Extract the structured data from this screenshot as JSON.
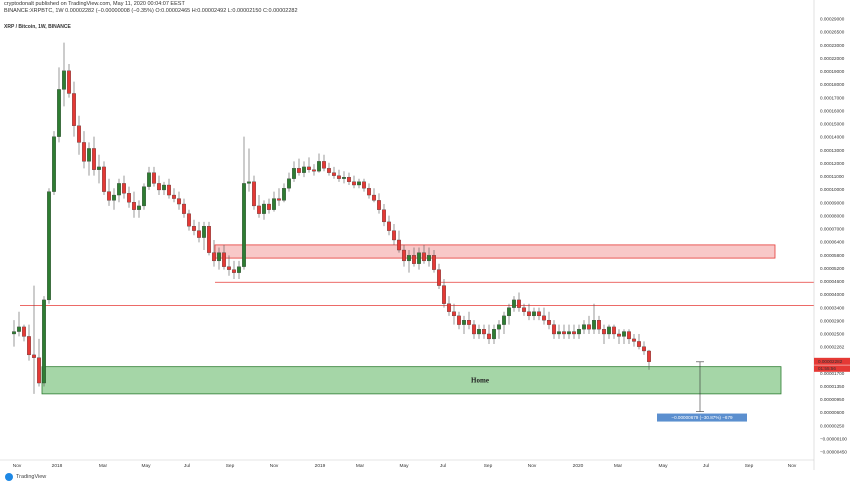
{
  "header": {
    "published": "cryptodonalt published on TradingView.com, May 11, 2020 00:04:07 EEST",
    "symbol_line": "BINANCE:XRPBTC, 1W  0.00002282 (−0.00000008 (−0.35%)  O:0.00002465 H:0.00002492 L:0.00002150 C:0.00002282",
    "title": "XRP / Bitcoin, 1W, BINANCE"
  },
  "colors": {
    "up": "#2e7d32",
    "down": "#e53935",
    "resistance_fill": "#f8c8c8",
    "support_fill": "#a5d6a7",
    "measure": "#5b8fcf"
  },
  "annotations": {
    "home_label": "Home",
    "measure_label": "−0.00000679 (−30.87%) −679",
    "last_price": "0.00002282",
    "last_time": "01:55:56"
  },
  "footer": {
    "logo": "TradingView"
  },
  "chart_data": {
    "type": "candlestick",
    "title": "XRP / Bitcoin, 1W, BINANCE",
    "y_scale": "log",
    "y_ticks": [
      "0.00029000",
      "0.00026500",
      "0.00023000",
      "0.00022000",
      "0.00019000",
      "0.00018000",
      "0.00017000",
      "0.00016000",
      "0.00015000",
      "0.00014000",
      "0.00013000",
      "0.00012000",
      "0.00011000",
      "0.00010000",
      "0.00009000",
      "0.00008000",
      "0.00007000",
      "0.00006400",
      "0.00005800",
      "0.00005200",
      "0.00004600",
      "0.00004000",
      "0.00003400",
      "0.00002900",
      "0.00002500",
      "0.00002282",
      "0.00002100",
      "0.00001700",
      "0.00001350",
      "0.00000950",
      "0.00000600",
      "0.00000250",
      "−0.00000100",
      "−0.00000450"
    ],
    "x_ticks": [
      "Nov",
      "2018",
      "Mar",
      "May",
      "Jul",
      "Sep",
      "Nov",
      "2019",
      "Mar",
      "May",
      "Jul",
      "Sep",
      "Nov",
      "2020",
      "Mar",
      "May",
      "Jul",
      "Sep",
      "Nov"
    ],
    "candles": [
      [
        2.8e-05,
        3.1e-05,
        2.55e-05,
        2.85e-05
      ],
      [
        2.85e-05,
        3.3e-05,
        2.75e-05,
        2.95e-05
      ],
      [
        2.95e-05,
        3e-05,
        2.65e-05,
        2.75e-05
      ],
      [
        2.75e-05,
        3e-05,
        2.3e-05,
        2.4e-05
      ],
      [
        2.4e-05,
        4e-05,
        1.8e-05,
        2.35e-05
      ],
      [
        2.35e-05,
        2.7e-05,
        1.9e-05,
        1.95e-05
      ],
      [
        1.95e-05,
        3.7e-05,
        1.9e-05,
        3.6e-05
      ],
      [
        3.6e-05,
        8.2e-05,
        3.5e-05,
        8e-05
      ],
      [
        8e-05,
        0.000125,
        7.8e-05,
        0.00012
      ],
      [
        0.00012,
        0.0002,
        0.000115,
        0.00017
      ],
      [
        0.00017,
        0.00024,
        0.00015,
        0.000195
      ],
      [
        0.000195,
        0.000205,
        0.00016,
        0.000165
      ],
      [
        0.000165,
        0.00018,
        0.00012,
        0.00013
      ],
      [
        0.00013,
        0.00014,
        0.000105,
        0.000115
      ],
      [
        0.000115,
        0.000125,
        9.5e-05,
        0.0001
      ],
      [
        0.0001,
        0.000115,
        9e-05,
        0.00011
      ],
      [
        0.00011,
        0.00012,
        9e-05,
        9.4e-05
      ],
      [
        9.4e-05,
        0.000105,
        8.5e-05,
        9.6e-05
      ],
      [
        9.6e-05,
        0.0001,
        7.8e-05,
        8e-05
      ],
      [
        8e-05,
        8.8e-05,
        7.2e-05,
        7.5e-05
      ],
      [
        7.5e-05,
        8.2e-05,
        7e-05,
        7.8e-05
      ],
      [
        7.8e-05,
        8.8e-05,
        7.4e-05,
        8.5e-05
      ],
      [
        8.5e-05,
        9e-05,
        7.6e-05,
        7.9e-05
      ],
      [
        7.9e-05,
        8.3e-05,
        7.1e-05,
        7.4e-05
      ],
      [
        7.4e-05,
        8e-05,
        6.6e-05,
        7e-05
      ],
      [
        7e-05,
        7.5e-05,
        6.6e-05,
        7.2e-05
      ],
      [
        7.2e-05,
        8.5e-05,
        7e-05,
        8.3e-05
      ],
      [
        8.3e-05,
        9.6e-05,
        8.1e-05,
        9.2e-05
      ],
      [
        9.2e-05,
        9.6e-05,
        8.3e-05,
        8.5e-05
      ],
      [
        8.5e-05,
        9e-05,
        7.8e-05,
        8.1e-05
      ],
      [
        8.1e-05,
        8.6e-05,
        7.8e-05,
        8.4e-05
      ],
      [
        8.4e-05,
        8.8e-05,
        7.6e-05,
        7.8e-05
      ],
      [
        7.8e-05,
        8.2e-05,
        7.4e-05,
        7.6e-05
      ],
      [
        7.6e-05,
        8e-05,
        7e-05,
        7.3e-05
      ],
      [
        7.3e-05,
        7.6e-05,
        6.6e-05,
        6.8e-05
      ],
      [
        6.8e-05,
        7e-05,
        6e-05,
        6.2e-05
      ],
      [
        6.2e-05,
        6.5e-05,
        5.8e-05,
        6e-05
      ],
      [
        6e-05,
        6.4e-05,
        5.5e-05,
        5.7e-05
      ],
      [
        5.7e-05,
        6.4e-05,
        5.2e-05,
        6.2e-05
      ],
      [
        6.2e-05,
        6.4e-05,
        5e-05,
        5.1e-05
      ],
      [
        5.1e-05,
        5.6e-05,
        4.6e-05,
        4.8e-05
      ],
      [
        4.8e-05,
        5.3e-05,
        4.5e-05,
        5.1e-05
      ],
      [
        5.1e-05,
        5.4e-05,
        4.5e-05,
        4.6e-05
      ],
      [
        4.6e-05,
        5e-05,
        4.3e-05,
        4.5e-05
      ],
      [
        4.5e-05,
        4.8e-05,
        4.2e-05,
        4.4e-05
      ],
      [
        4.4e-05,
        4.8e-05,
        4.2e-05,
        4.6e-05
      ],
      [
        4.6e-05,
        0.00012,
        4.5e-05,
        8.5e-05
      ],
      [
        8.5e-05,
        0.00011,
        8e-05,
        8.6e-05
      ],
      [
        8.6e-05,
        9e-05,
        7e-05,
        7.2e-05
      ],
      [
        7.2e-05,
        7.8e-05,
        6.6e-05,
        6.8e-05
      ],
      [
        6.8e-05,
        7.5e-05,
        6.5e-05,
        7.3e-05
      ],
      [
        7.3e-05,
        7.6e-05,
        6.8e-05,
        7e-05
      ],
      [
        7e-05,
        8e-05,
        6.9e-05,
        7.6e-05
      ],
      [
        7.6e-05,
        8.2e-05,
        7.2e-05,
        7.5e-05
      ],
      [
        7.5e-05,
        8.5e-05,
        7.4e-05,
        8.2e-05
      ],
      [
        8.2e-05,
        9.2e-05,
        8e-05,
        8.8e-05
      ],
      [
        8.8e-05,
        0.0001,
        8.6e-05,
        9.5e-05
      ],
      [
        9.5e-05,
        0.000102,
        9e-05,
        9.2e-05
      ],
      [
        9.2e-05,
        0.0001,
        8.9e-05,
        9.6e-05
      ],
      [
        9.6e-05,
        0.000103,
        9.2e-05,
        9.4e-05
      ],
      [
        9.4e-05,
        9.8e-05,
        9e-05,
        9.3e-05
      ],
      [
        9.3e-05,
        0.000106,
        9.2e-05,
        0.0001
      ],
      [
        0.0001,
        0.000105,
        9.3e-05,
        9.5e-05
      ],
      [
        9.5e-05,
        9.9e-05,
        9e-05,
        9.2e-05
      ],
      [
        9.2e-05,
        9.6e-05,
        8.8e-05,
        9e-05
      ],
      [
        9e-05,
        9.4e-05,
        8.6e-05,
        8.8e-05
      ],
      [
        8.8e-05,
        9.3e-05,
        8.5e-05,
        8.9e-05
      ],
      [
        8.9e-05,
        9.2e-05,
        8.4e-05,
        8.6e-05
      ],
      [
        8.6e-05,
        9e-05,
        8.2e-05,
        8.4e-05
      ],
      [
        8.4e-05,
        8.8e-05,
        8.2e-05,
        8.6e-05
      ],
      [
        8.6e-05,
        8.8e-05,
        8e-05,
        8.2e-05
      ],
      [
        8.2e-05,
        8.5e-05,
        7.6e-05,
        7.8e-05
      ],
      [
        7.8e-05,
        8.2e-05,
        7.4e-05,
        7.5e-05
      ],
      [
        7.5e-05,
        7.9e-05,
        6.8e-05,
        7e-05
      ],
      [
        7e-05,
        7.3e-05,
        6.2e-05,
        6.4e-05
      ],
      [
        6.4e-05,
        6.7e-05,
        5.8e-05,
        6e-05
      ],
      [
        6e-05,
        6.3e-05,
        5.4e-05,
        5.6e-05
      ],
      [
        5.6e-05,
        6e-05,
        5.1e-05,
        5.2e-05
      ],
      [
        5.2e-05,
        5.4e-05,
        4.6e-05,
        4.8e-05
      ],
      [
        4.8e-05,
        5.2e-05,
        4.4e-05,
        5e-05
      ],
      [
        5e-05,
        5.3e-05,
        4.6e-05,
        4.7e-05
      ],
      [
        4.7e-05,
        5.3e-05,
        4.5e-05,
        5.1e-05
      ],
      [
        5.1e-05,
        5.4e-05,
        4.7e-05,
        4.8e-05
      ],
      [
        4.8e-05,
        5.3e-05,
        4.6e-05,
        5e-05
      ],
      [
        5e-05,
        5.2e-05,
        4.4e-05,
        4.5e-05
      ],
      [
        4.5e-05,
        4.7e-05,
        3.9e-05,
        4e-05
      ],
      [
        4e-05,
        4.2e-05,
        3.4e-05,
        3.5e-05
      ],
      [
        3.5e-05,
        3.7e-05,
        3.2e-05,
        3.3e-05
      ],
      [
        3.3e-05,
        3.5e-05,
        3e-05,
        3.2e-05
      ],
      [
        3.2e-05,
        3.3e-05,
        2.9e-05,
        3e-05
      ],
      [
        3e-05,
        3.2e-05,
        2.8e-05,
        3.1e-05
      ],
      [
        3.1e-05,
        3.3e-05,
        2.9e-05,
        3e-05
      ],
      [
        3e-05,
        3.1e-05,
        2.7e-05,
        2.8e-05
      ],
      [
        2.8e-05,
        3e-05,
        2.7e-05,
        2.9e-05
      ],
      [
        2.9e-05,
        3e-05,
        2.7e-05,
        2.8e-05
      ],
      [
        2.8e-05,
        3e-05,
        2.6e-05,
        2.7e-05
      ],
      [
        2.7e-05,
        3e-05,
        2.6e-05,
        2.9e-05
      ],
      [
        2.9e-05,
        3.1e-05,
        2.7e-05,
        3e-05
      ],
      [
        3e-05,
        3.3e-05,
        2.8e-05,
        3.2e-05
      ],
      [
        3.2e-05,
        3.5e-05,
        3e-05,
        3.4e-05
      ],
      [
        3.4e-05,
        3.7e-05,
        3.3e-05,
        3.6e-05
      ],
      [
        3.6e-05,
        3.8e-05,
        3.3e-05,
        3.4e-05
      ],
      [
        3.4e-05,
        3.5e-05,
        3.2e-05,
        3.3e-05
      ],
      [
        3.3e-05,
        3.5e-05,
        3.1e-05,
        3.2e-05
      ],
      [
        3.2e-05,
        3.4e-05,
        3.1e-05,
        3.3e-05
      ],
      [
        3.3e-05,
        3.4e-05,
        3.1e-05,
        3.2e-05
      ],
      [
        3.2e-05,
        3.4e-05,
        3e-05,
        3.1e-05
      ],
      [
        3.1e-05,
        3.3e-05,
        2.9e-05,
        3e-05
      ],
      [
        3e-05,
        3.1e-05,
        2.7e-05,
        2.8e-05
      ],
      [
        2.8e-05,
        3e-05,
        2.7e-05,
        2.85e-05
      ],
      [
        2.85e-05,
        3e-05,
        2.7e-05,
        2.8e-05
      ],
      [
        2.8e-05,
        3e-05,
        2.7e-05,
        2.85e-05
      ],
      [
        2.85e-05,
        3e-05,
        2.7e-05,
        2.8e-05
      ],
      [
        2.8e-05,
        3e-05,
        2.7e-05,
        2.9e-05
      ],
      [
        2.9e-05,
        3.1e-05,
        2.8e-05,
        3e-05
      ],
      [
        3e-05,
        3.2e-05,
        2.8e-05,
        2.9e-05
      ],
      [
        2.9e-05,
        3.5e-05,
        2.8e-05,
        3.1e-05
      ],
      [
        3.1e-05,
        3.2e-05,
        2.8e-05,
        2.9e-05
      ],
      [
        2.9e-05,
        3e-05,
        2.6e-05,
        2.8e-05
      ],
      [
        2.8e-05,
        3e-05,
        2.7e-05,
        2.95e-05
      ],
      [
        2.95e-05,
        3e-05,
        2.7e-05,
        2.8e-05
      ],
      [
        2.8e-05,
        2.9e-05,
        2.6e-05,
        2.75e-05
      ],
      [
        2.75e-05,
        2.9e-05,
        2.6e-05,
        2.85e-05
      ],
      [
        2.85e-05,
        2.9e-05,
        2.6e-05,
        2.7e-05
      ],
      [
        2.7e-05,
        2.8e-05,
        2.55e-05,
        2.65e-05
      ],
      [
        2.65e-05,
        2.8e-05,
        2.5e-05,
        2.55e-05
      ],
      [
        2.55e-05,
        2.65e-05,
        2.4e-05,
        2.47e-05
      ],
      [
        2.47e-05,
        2.49e-05,
        2.15e-05,
        2.28e-05
      ]
    ],
    "support_zone": {
      "label": "Home",
      "low": 1.8e-05,
      "high": 2.2e-05
    },
    "resistance_zone": {
      "low": 4.9e-05,
      "high": 5.4e-05
    },
    "horizontal_lines": [
      4.1e-05,
      3.45e-05
    ],
    "measure": {
      "label": "−0.00000679 (−30.87%) −679"
    }
  }
}
